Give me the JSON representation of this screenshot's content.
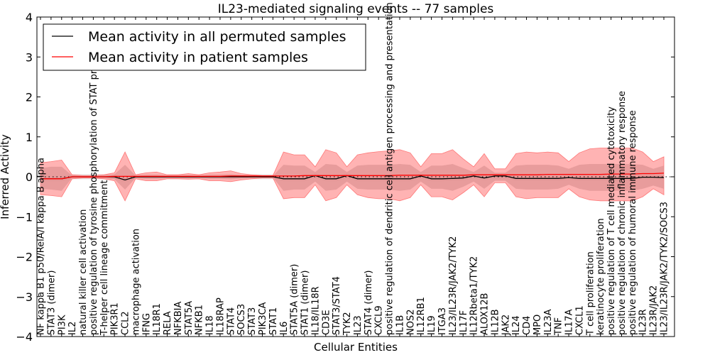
{
  "chart_data": {
    "type": "line",
    "title": "IL23-mediated signaling events -- 77 samples",
    "xlabel": "Cellular Entities",
    "ylabel": "Inferred Activity",
    "ylim": [
      -4,
      4
    ],
    "yticks": [
      -4,
      -3,
      -2,
      -1,
      0,
      1,
      2,
      3,
      4
    ],
    "ytick_labels": [
      "−4",
      "−3",
      "−2",
      "−1",
      "0",
      "1",
      "2",
      "3",
      "4"
    ],
    "grid": false,
    "legend_position": "top-left",
    "legend": [
      {
        "label": "Mean activity in all permuted samples",
        "color": "#000000"
      },
      {
        "label": "Mean activity in patient samples",
        "color": "#ff0000"
      }
    ],
    "colors": {
      "permuted_line": "#000000",
      "patient_line": "#ff0000",
      "outer_band": "#ff9999",
      "inner_band": "#d98c8c",
      "permuted_band": "#cccccc",
      "zero_line": "#000000"
    },
    "categories": [
      "NF kappa B1 p50/RelA/I kappa B alpha",
      "STAT3 (dimer)",
      "PI3K",
      "IL2",
      "natural killer cell activation",
      "positive regulation of tyrosine phosphorylation of STAT protein",
      "T-helper cell lineage commitment",
      "PIK3R1",
      "CCL2",
      "macrophage activation",
      "IFNG",
      "IL18R1",
      "RELA",
      "NFKBIA",
      "STAT5A",
      "NFKB1",
      "IL18",
      "IL18RAP",
      "STAT4",
      "SOCS3",
      "STAT3",
      "PIK3CA",
      "STAT1",
      "IL6",
      "STAT5A (dimer)",
      "STAT1 (dimer)",
      "IL18/IL18R",
      "CD3E",
      "STAT3/STAT4",
      "TYK2",
      "IL23",
      "STAT4 (dimer)",
      "CXCL9",
      "positive regulation of dendritic cell antigen processing and presentation",
      "IL1B",
      "NOS2",
      "IL12RB1",
      "IL19",
      "ITGA3",
      "IL23/IL23R/JAK2/TYK2",
      "IL17F",
      "IL12Rbeta1/TYK2",
      "ALOX12B",
      "IL12B",
      "JAK2",
      "IL24",
      "CD4",
      "MPO",
      "IL23A",
      "TNF",
      "IL17A",
      "CXCL1",
      "T cell proliferation",
      "keratinocyte proliferation",
      "positive regulation of T cell mediated cytotoxicity",
      "positive regulation of chronic inflammatory response",
      "positive regulation of humoral immune response",
      "IL23R",
      "IL23R/JAK2",
      "IL23/IL23R/JAK2/TYK2/SOCS3"
    ],
    "series": [
      {
        "name": "Mean activity in all permuted samples",
        "values": [
          -0.05,
          -0.05,
          -0.05,
          0.0,
          0.0,
          0.0,
          0.0,
          0.0,
          -0.08,
          0.0,
          0.0,
          0.0,
          0.0,
          0.0,
          0.0,
          0.0,
          0.0,
          0.0,
          0.0,
          0.0,
          0.0,
          0.0,
          0.0,
          -0.05,
          -0.05,
          -0.05,
          0.03,
          -0.05,
          -0.05,
          0.03,
          -0.05,
          -0.05,
          -0.05,
          -0.05,
          -0.05,
          -0.05,
          0.02,
          -0.05,
          -0.05,
          -0.04,
          -0.03,
          0.02,
          -0.03,
          0.02,
          0.02,
          -0.04,
          -0.04,
          -0.04,
          -0.04,
          -0.04,
          -0.02,
          -0.04,
          -0.04,
          -0.04,
          -0.04,
          -0.04,
          -0.04,
          -0.01,
          -0.01,
          -0.02
        ]
      },
      {
        "name": "Mean activity in patient samples",
        "values": [
          -0.05,
          -0.05,
          -0.05,
          0.0,
          0.0,
          0.0,
          0.0,
          0.01,
          0.01,
          0.01,
          0.01,
          0.01,
          0.01,
          0.01,
          0.01,
          0.01,
          0.01,
          0.01,
          0.02,
          0.02,
          0.02,
          0.02,
          0.02,
          0.02,
          0.02,
          0.03,
          0.03,
          0.03,
          0.03,
          0.03,
          0.03,
          0.03,
          0.03,
          0.03,
          0.04,
          0.04,
          0.04,
          0.04,
          0.04,
          0.04,
          0.04,
          0.05,
          0.05,
          0.05,
          0.05,
          0.05,
          0.05,
          0.05,
          0.06,
          0.06,
          0.06,
          0.06,
          0.06,
          0.06,
          0.07,
          0.07,
          0.07,
          0.08,
          0.08,
          0.09
        ]
      }
    ],
    "outer_band": {
      "upper": [
        0.35,
        0.38,
        0.42,
        0.05,
        0.03,
        0.03,
        0.05,
        0.1,
        0.62,
        0.05,
        0.1,
        0.12,
        0.05,
        0.05,
        0.08,
        0.05,
        0.1,
        0.12,
        0.15,
        0.08,
        0.05,
        0.03,
        0.03,
        0.62,
        0.55,
        0.55,
        0.25,
        0.68,
        0.6,
        0.25,
        0.55,
        0.6,
        0.63,
        0.65,
        0.68,
        0.6,
        0.25,
        0.58,
        0.58,
        0.68,
        0.45,
        0.25,
        0.58,
        0.2,
        0.2,
        0.58,
        0.62,
        0.6,
        0.62,
        0.6,
        0.38,
        0.6,
        0.7,
        0.72,
        0.72,
        0.72,
        0.72,
        0.62,
        0.38,
        0.5
      ],
      "lower": [
        -0.45,
        -0.47,
        -0.5,
        -0.05,
        -0.03,
        -0.03,
        -0.05,
        -0.1,
        -0.6,
        -0.05,
        -0.1,
        -0.1,
        -0.05,
        -0.05,
        -0.06,
        -0.05,
        -0.1,
        -0.1,
        -0.12,
        -0.08,
        -0.05,
        -0.03,
        -0.03,
        -0.55,
        -0.52,
        -0.52,
        -0.2,
        -0.6,
        -0.52,
        -0.2,
        -0.45,
        -0.52,
        -0.55,
        -0.55,
        -0.6,
        -0.52,
        -0.2,
        -0.5,
        -0.5,
        -0.58,
        -0.4,
        -0.2,
        -0.5,
        -0.15,
        -0.15,
        -0.5,
        -0.55,
        -0.52,
        -0.52,
        -0.52,
        -0.3,
        -0.5,
        -0.58,
        -0.6,
        -0.6,
        -0.6,
        -0.6,
        -0.5,
        -0.3,
        -0.45
      ]
    },
    "inner_band": {
      "upper": [
        0.22,
        0.25,
        0.25,
        0.03,
        0.02,
        0.02,
        0.03,
        0.06,
        0.3,
        0.03,
        0.05,
        0.05,
        0.03,
        0.03,
        0.04,
        0.03,
        0.05,
        0.05,
        0.06,
        0.04,
        0.03,
        0.02,
        0.02,
        0.3,
        0.28,
        0.28,
        0.12,
        0.32,
        0.3,
        0.12,
        0.28,
        0.3,
        0.3,
        0.3,
        0.32,
        0.3,
        0.12,
        0.28,
        0.28,
        0.32,
        0.22,
        0.12,
        0.28,
        0.1,
        0.1,
        0.28,
        0.3,
        0.3,
        0.3,
        0.28,
        0.2,
        0.3,
        0.32,
        0.32,
        0.32,
        0.32,
        0.32,
        0.3,
        0.2,
        0.28
      ],
      "lower": [
        -0.3,
        -0.32,
        -0.35,
        -0.03,
        -0.02,
        -0.02,
        -0.03,
        -0.06,
        -0.32,
        -0.03,
        -0.05,
        -0.05,
        -0.03,
        -0.03,
        -0.04,
        -0.03,
        -0.05,
        -0.05,
        -0.06,
        -0.04,
        -0.03,
        -0.02,
        -0.02,
        -0.35,
        -0.32,
        -0.32,
        -0.12,
        -0.35,
        -0.32,
        -0.12,
        -0.3,
        -0.32,
        -0.32,
        -0.32,
        -0.35,
        -0.32,
        -0.12,
        -0.3,
        -0.3,
        -0.35,
        -0.25,
        -0.12,
        -0.3,
        -0.1,
        -0.1,
        -0.3,
        -0.32,
        -0.32,
        -0.32,
        -0.3,
        -0.2,
        -0.3,
        -0.35,
        -0.35,
        -0.35,
        -0.35,
        -0.35,
        -0.3,
        -0.22,
        -0.3
      ]
    }
  }
}
